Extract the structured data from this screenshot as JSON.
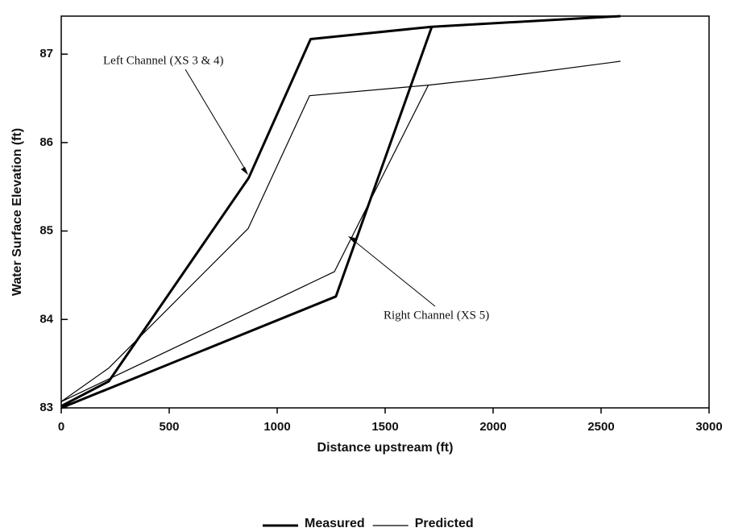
{
  "chart_data": {
    "type": "line",
    "x_label": "Distance upstream (ft)",
    "y_label": "Water Surface Elevation (ft)",
    "xlim": [
      0,
      3000
    ],
    "xticks": [
      0,
      500,
      1000,
      1500,
      2000,
      2500,
      3000
    ],
    "ylim": [
      83,
      87.43
    ],
    "yticks": [
      83,
      84,
      85,
      86,
      87
    ],
    "series": [
      {
        "name": "Measured",
        "color": "#000000",
        "line_width": 3,
        "x": [
          0,
          220,
          868,
          1155,
          1716,
          2590,
          null,
          0,
          1272,
          1716
        ],
        "values": [
          83.02,
          83.3,
          85.6,
          87.17,
          87.31,
          87.43,
          null,
          83.0,
          84.26,
          87.31
        ]
      },
      {
        "name": "Predicted",
        "color": "#000000",
        "line_width": 1.2,
        "x": [
          0,
          220,
          866,
          1150,
          1700,
          2000,
          2590,
          null,
          0,
          1265,
          1700
        ],
        "values": [
          83.07,
          83.45,
          85.03,
          86.53,
          86.65,
          86.73,
          86.92,
          null,
          83.07,
          84.54,
          86.65
        ]
      }
    ],
    "annotations": [
      "Left Channel (XS 3 & 4)",
      "Right Channel (XS 5)"
    ]
  }
}
